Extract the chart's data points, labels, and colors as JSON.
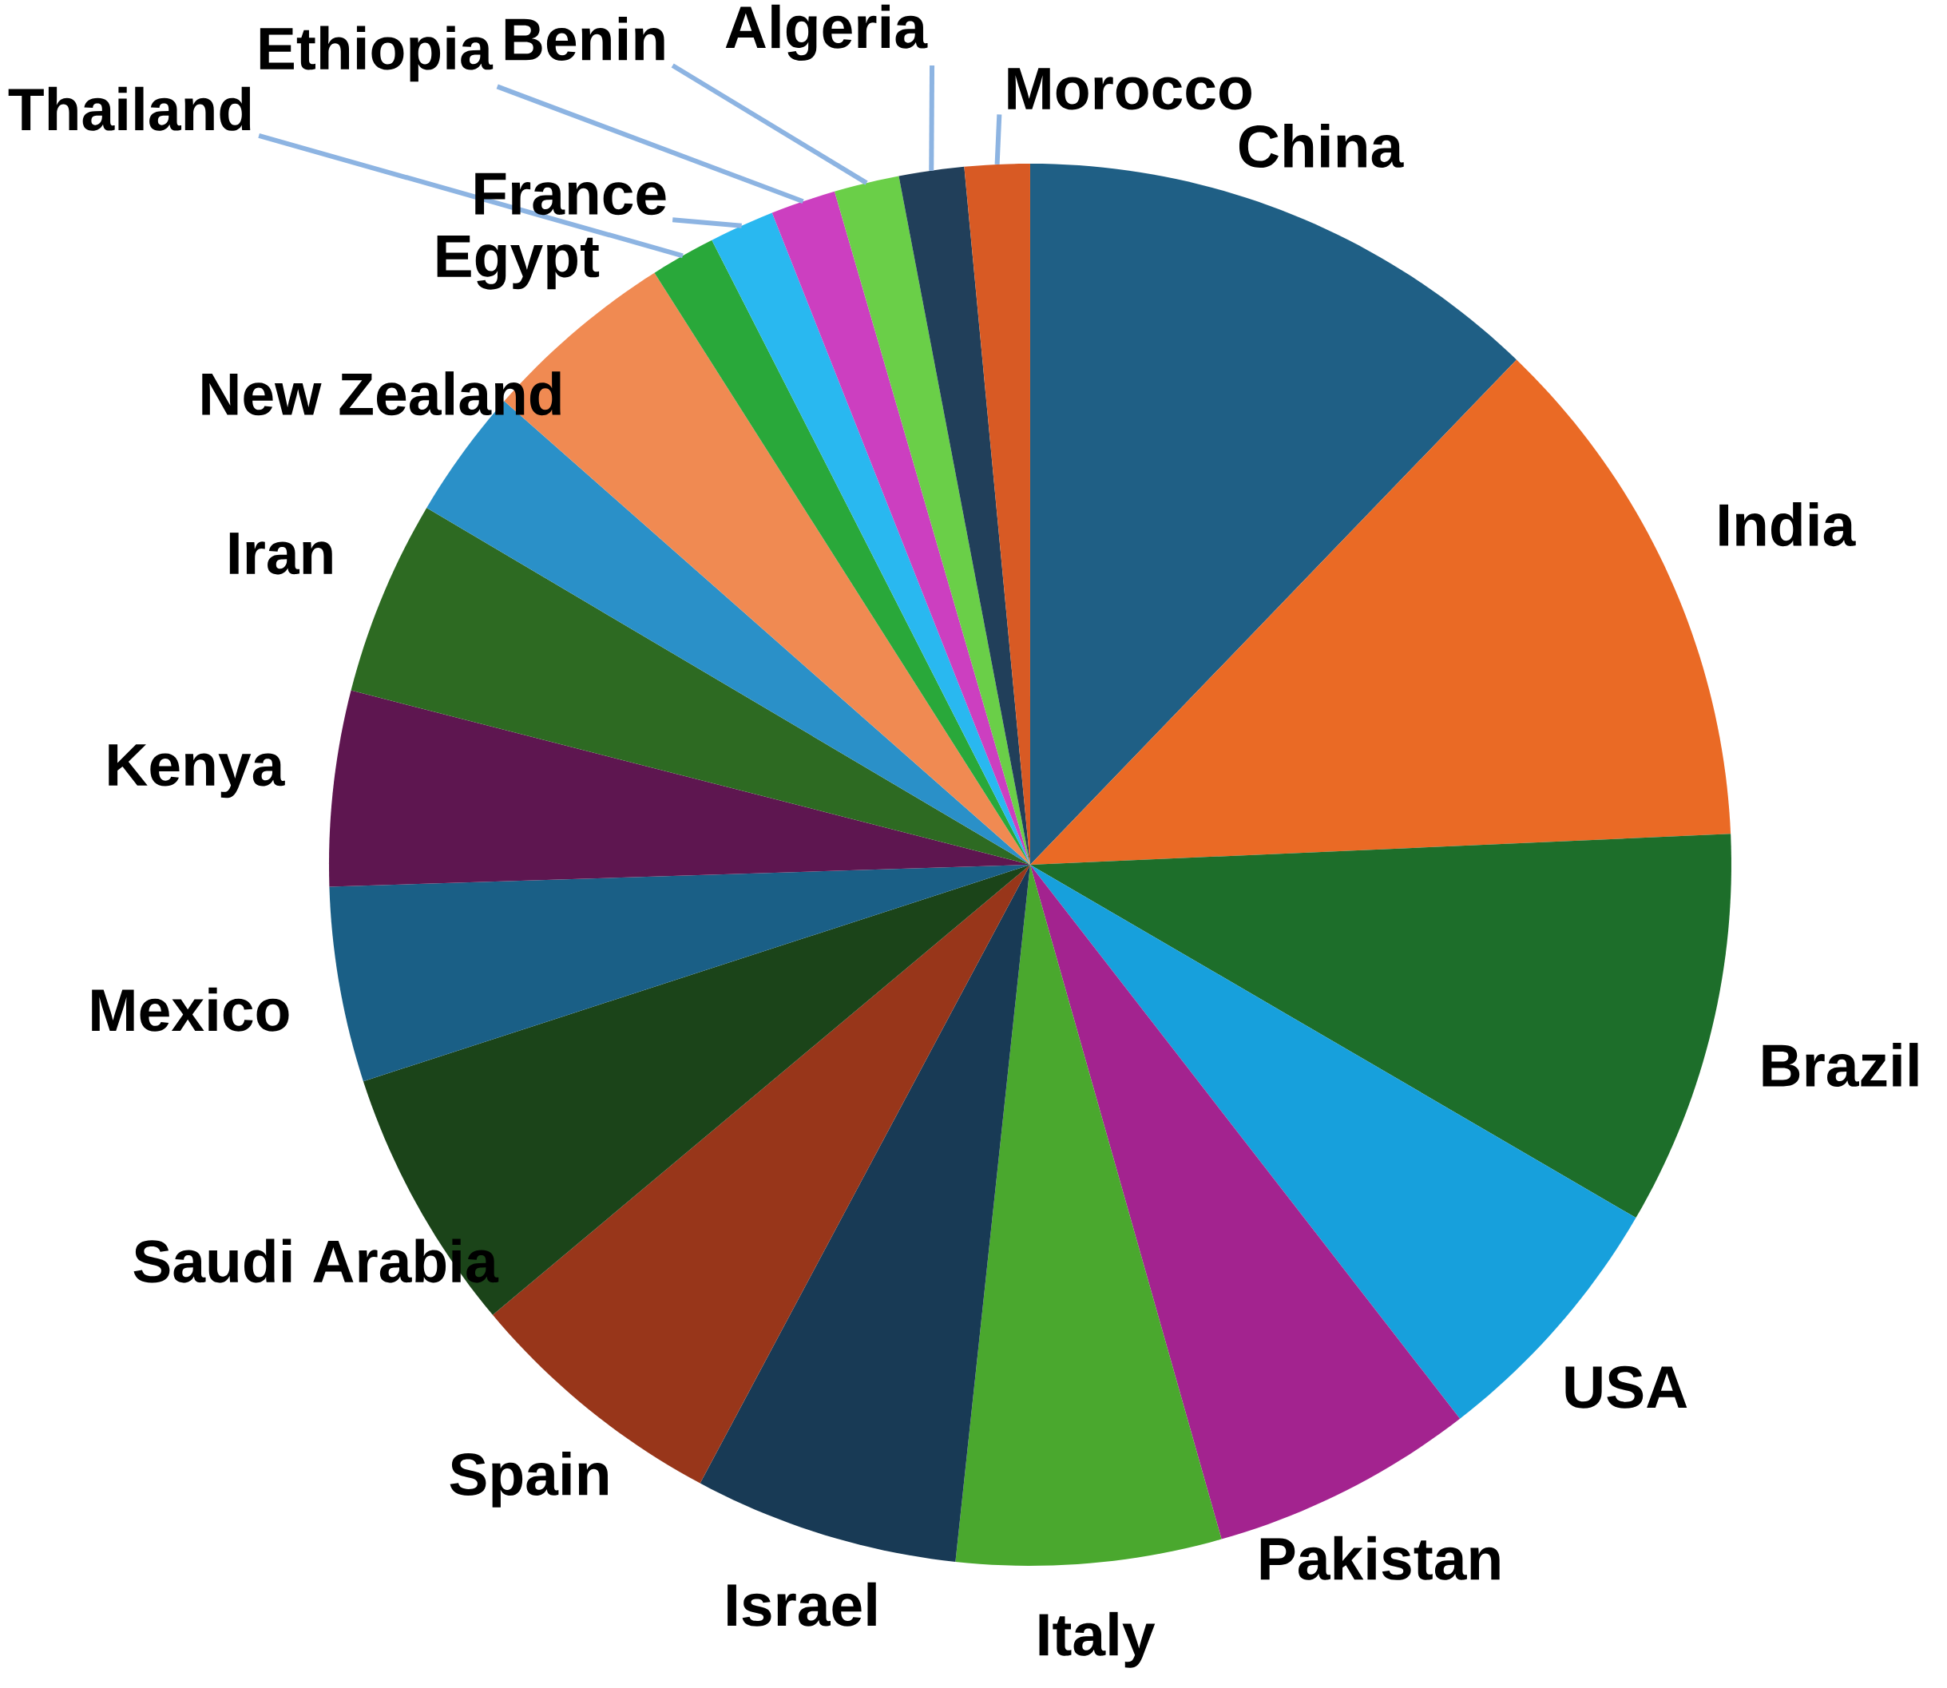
{
  "chart_data": {
    "type": "pie",
    "categories": [
      "China",
      "India",
      "Brazil",
      "USA",
      "Pakistan",
      "Italy",
      "Israel",
      "Spain",
      "Saudi Arabia",
      "Mexico",
      "Kenya",
      "Iran",
      "New Zealand",
      "Egypt",
      "Thailand",
      "France",
      "Ethiopia",
      "Benin",
      "Algeria",
      "Morocco"
    ],
    "values": [
      12.2,
      12.1,
      9.1,
      6.1,
      6.1,
      6.1,
      6.1,
      6.1,
      6.1,
      4.5,
      4.5,
      4.5,
      3.0,
      4.5,
      1.5,
      1.5,
      1.5,
      1.5,
      1.5,
      1.5
    ],
    "colors": [
      "#1f5f85",
      "#ea6a25",
      "#1d6e2a",
      "#17a0dc",
      "#a3238f",
      "#4aa82e",
      "#183a55",
      "#98361a",
      "#1b4419",
      "#1a5f86",
      "#5e1650",
      "#2d6a22",
      "#2a90c8",
      "#f08a52",
      "#29a83a",
      "#29b8f0",
      "#cc3fc0",
      "#6acf48",
      "#213f5a",
      "#d85a24"
    ]
  }
}
